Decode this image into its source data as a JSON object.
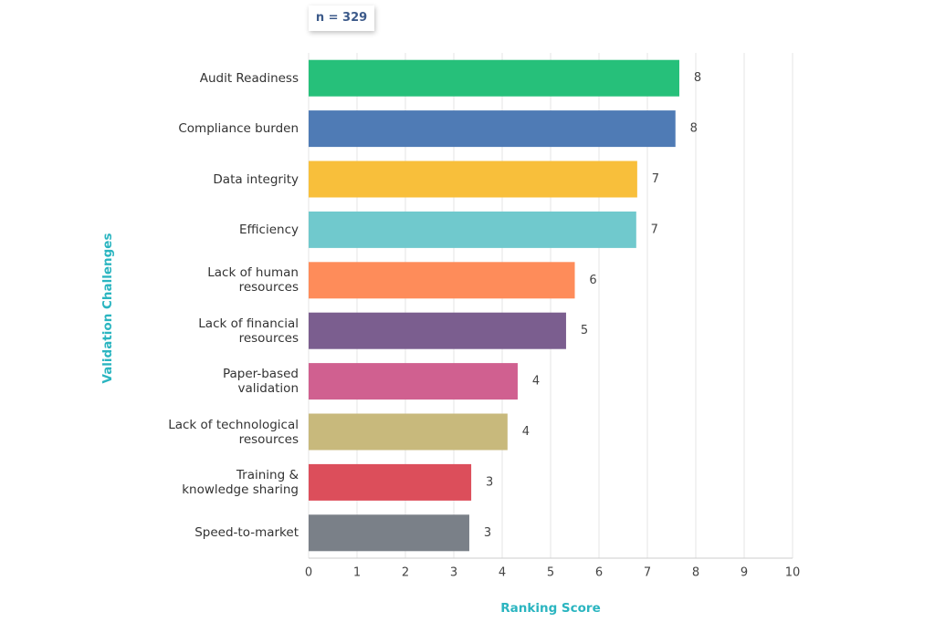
{
  "chart_data": {
    "type": "barh",
    "annotation": "n = 329",
    "xlabel": "Ranking Score",
    "ylabel": "Validation Challenges",
    "categories": [
      "Audit Readiness",
      "Compliance burden",
      "Data integrity",
      "Efficiency",
      "Lack of human\nresources",
      "Lack of financial\nresources",
      "Paper-based\nvalidation",
      "Lack of technological\nresources",
      "Training &\nknowledge sharing",
      "Speed-to-market"
    ],
    "values": [
      7.66,
      7.58,
      6.79,
      6.77,
      5.5,
      5.32,
      4.32,
      4.11,
      3.36,
      3.32
    ],
    "value_labels": [
      "8",
      "8",
      "7",
      "7",
      "6",
      "5",
      "4",
      "4",
      "3",
      "3"
    ],
    "colors": [
      "#26c07a",
      "#4f7bb5",
      "#f8bf3b",
      "#70c9cd",
      "#fe8c5a",
      "#7b5e8f",
      "#d06090",
      "#c8b97c",
      "#dc4e5b",
      "#7a8088"
    ],
    "xlim": [
      0,
      10
    ],
    "xticks": [
      0,
      1,
      2,
      3,
      4,
      5,
      6,
      7,
      8,
      9,
      10
    ],
    "grid": true
  }
}
